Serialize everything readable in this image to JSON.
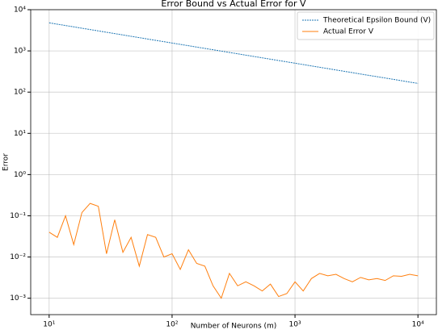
{
  "chart_data": {
    "type": "line",
    "title": "Error Bound vs Actual Error for V",
    "xlabel": "Number of Neurons (m)",
    "ylabel": "Error",
    "xscale": "log",
    "yscale": "log",
    "grid": true,
    "legend": "upper right",
    "xlim": [
      7.08,
      14125
    ],
    "ylim": [
      0.0004,
      10000
    ],
    "xticks": [
      {
        "value": 10,
        "label": "10¹"
      },
      {
        "value": 100,
        "label": "10²"
      },
      {
        "value": 1000,
        "label": "10³"
      },
      {
        "value": 10000,
        "label": "10⁴"
      }
    ],
    "yticks": [
      {
        "value": 0.001,
        "label": "10⁻³"
      },
      {
        "value": 0.01,
        "label": "10⁻²"
      },
      {
        "value": 0.1,
        "label": "10⁻¹"
      },
      {
        "value": 1,
        "label": "10⁰"
      },
      {
        "value": 10,
        "label": "10¹"
      },
      {
        "value": 100,
        "label": "10²"
      },
      {
        "value": 1000,
        "label": "10³"
      },
      {
        "value": 10000,
        "label": "10⁴"
      }
    ],
    "x": [
      10,
      11.66,
      13.59,
      15.85,
      18.48,
      21.54,
      25.12,
      29.29,
      34.15,
      39.81,
      46.42,
      54.12,
      63.1,
      73.56,
      85.77,
      100,
      116.6,
      135.9,
      158.5,
      184.8,
      215.4,
      251.2,
      292.9,
      341.5,
      398.1,
      464.2,
      541.2,
      631,
      735.6,
      857.7,
      1000,
      1166,
      1359,
      1585,
      1848,
      2154,
      2512,
      2929,
      3415,
      3981,
      4642,
      5412,
      6310,
      7356,
      8577,
      10000
    ],
    "series": [
      {
        "name": "Theoretical Epsilon Bound (V)",
        "color": "#1f77b4",
        "dashed": true,
        "values": [
          4800,
          4452,
          4129,
          3830,
          3552,
          3295,
          3056,
          2834,
          2629,
          2438,
          2261,
          2097,
          1945,
          1804,
          1674,
          1553,
          1441,
          1336,
          1239,
          1149,
          1066,
          989,
          917,
          851,
          789,
          732,
          679,
          630,
          584,
          542,
          503,
          466,
          432,
          401,
          372,
          345,
          320,
          297,
          275,
          255,
          237,
          220,
          204,
          189,
          175,
          163
        ]
      },
      {
        "name": "Actual Error V",
        "color": "#ff7f0e",
        "dashed": false,
        "values": [
          0.04,
          0.03,
          0.1,
          0.02,
          0.12,
          0.2,
          0.17,
          0.012,
          0.08,
          0.013,
          0.03,
          0.006,
          0.035,
          0.03,
          0.01,
          0.012,
          0.005,
          0.015,
          0.007,
          0.006,
          0.002,
          0.001,
          0.004,
          0.002,
          0.0025,
          0.002,
          0.0015,
          0.0022,
          0.0011,
          0.0013,
          0.0025,
          0.0015,
          0.003,
          0.004,
          0.0035,
          0.0038,
          0.003,
          0.0025,
          0.0032,
          0.0028,
          0.003,
          0.0027,
          0.0035,
          0.0034,
          0.0038,
          0.0035
        ]
      }
    ]
  }
}
